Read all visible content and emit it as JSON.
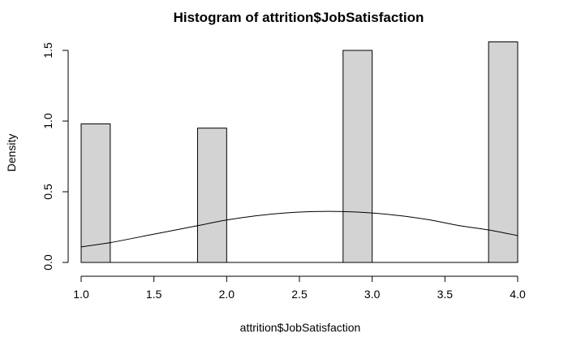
{
  "chart_data": {
    "type": "bar",
    "title": "Histogram of attrition$JobSatisfaction",
    "xlabel": "attrition$JobSatisfaction",
    "ylabel": "Density",
    "xlim": [
      1.0,
      4.0
    ],
    "ylim": [
      0,
      1.55
    ],
    "x_ticks": [
      "1.0",
      "1.5",
      "2.0",
      "2.5",
      "3.0",
      "3.5",
      "4.0"
    ],
    "y_ticks": [
      "0.0",
      "0.5",
      "1.0",
      "1.5"
    ],
    "bins": [
      {
        "x0": 1.0,
        "x1": 1.2,
        "density": 0.98
      },
      {
        "x0": 1.8,
        "x1": 2.0,
        "density": 0.95
      },
      {
        "x0": 2.8,
        "x1": 3.0,
        "density": 1.5
      },
      {
        "x0": 3.8,
        "x1": 4.0,
        "density": 1.56
      }
    ],
    "density_curve": {
      "x": [
        1.0,
        1.2,
        1.4,
        1.6,
        1.8,
        2.0,
        2.2,
        2.4,
        2.6,
        2.8,
        3.0,
        3.2,
        3.4,
        3.6,
        3.8,
        4.0
      ],
      "y": [
        0.11,
        0.14,
        0.18,
        0.22,
        0.26,
        0.3,
        0.33,
        0.35,
        0.36,
        0.36,
        0.35,
        0.33,
        0.3,
        0.26,
        0.23,
        0.19
      ]
    },
    "grid": false
  }
}
